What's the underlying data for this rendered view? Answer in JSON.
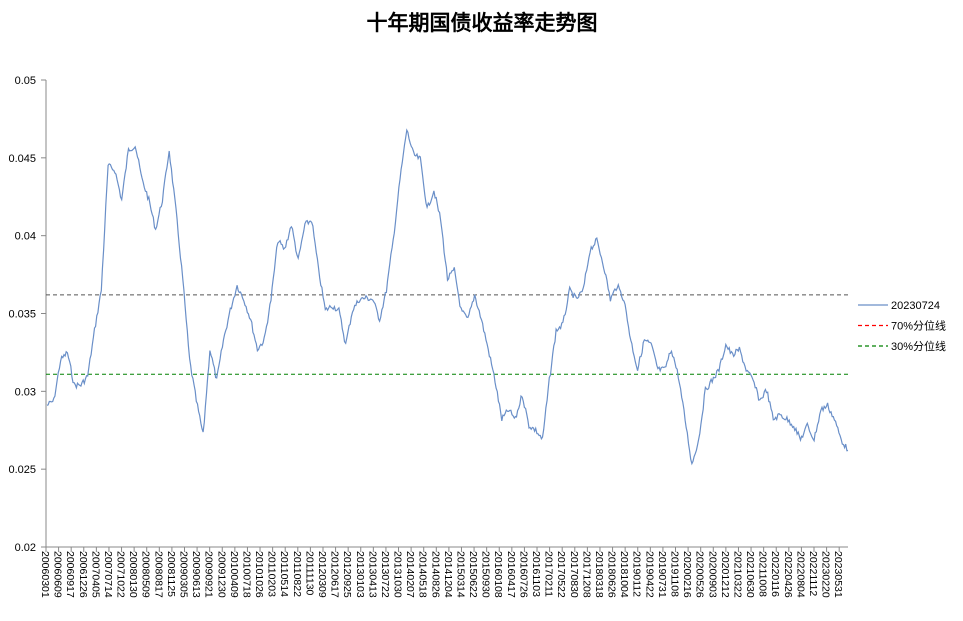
{
  "chart_data": {
    "type": "line",
    "title": "十年期国债收益率走势图",
    "xlabel": "",
    "ylabel": "",
    "ylim": [
      0.02,
      0.05
    ],
    "yticks": [
      "0.02",
      "0.025",
      "0.03",
      "0.035",
      "0.04",
      "0.045",
      "0.05"
    ],
    "ytick_values": [
      0.02,
      0.025,
      0.03,
      0.035,
      0.04,
      0.045,
      0.05
    ],
    "x_tick_labels": [
      "20060301",
      "20060609",
      "20060917",
      "20061226",
      "20070405",
      "20070714",
      "20071022",
      "20080130",
      "20080509",
      "20080817",
      "20081125",
      "20090305",
      "20090613",
      "20090921",
      "20091230",
      "20100409",
      "20100718",
      "20101026",
      "20110203",
      "20110514",
      "20110822",
      "20111130",
      "20120309",
      "20120617",
      "20120925",
      "20130103",
      "20130413",
      "20130722",
      "20131030",
      "20140207",
      "20140518",
      "20140826",
      "20141204",
      "20150314",
      "20150622",
      "20150930",
      "20160108",
      "20160417",
      "20160726",
      "20161103",
      "20170211",
      "20170522",
      "20170830",
      "20171208",
      "20180318",
      "20180626",
      "20181004",
      "20190112",
      "20190422",
      "20190731",
      "20191108",
      "20200216",
      "20200526",
      "20200903",
      "20201212",
      "20210322",
      "20210630",
      "20211008",
      "20220116",
      "20220426",
      "20220804",
      "20221112",
      "20230220",
      "20230531"
    ],
    "x_range": [
      "20060301",
      "20230724"
    ],
    "grid": false,
    "legend_position": "right",
    "series": [
      {
        "name": "20230724",
        "color": "#6a8fc8",
        "style": "solid",
        "values": [
          0.0291,
          0.0294,
          0.032,
          0.0325,
          0.0304,
          0.0304,
          0.031,
          0.0339,
          0.0365,
          0.0445,
          0.0442,
          0.0423,
          0.0455,
          0.0458,
          0.0436,
          0.0423,
          0.0404,
          0.0423,
          0.0455,
          0.0416,
          0.0372,
          0.032,
          0.0294,
          0.0272,
          0.0327,
          0.0307,
          0.0333,
          0.0352,
          0.0368,
          0.0359,
          0.0346,
          0.0327,
          0.0333,
          0.0359,
          0.0397,
          0.0391,
          0.0407,
          0.0384,
          0.0407,
          0.041,
          0.0378,
          0.0352,
          0.0355,
          0.0352,
          0.033,
          0.0352,
          0.0359,
          0.036,
          0.0359,
          0.0346,
          0.0365,
          0.0397,
          0.0436,
          0.0468,
          0.0452,
          0.0449,
          0.0417,
          0.0429,
          0.041,
          0.0372,
          0.0378,
          0.0352,
          0.0346,
          0.0362,
          0.0346,
          0.0327,
          0.0307,
          0.0282,
          0.0288,
          0.0282,
          0.0298,
          0.0278,
          0.0275,
          0.0269,
          0.0307,
          0.0339,
          0.0343,
          0.0365,
          0.0359,
          0.0365,
          0.0391,
          0.0397,
          0.0381,
          0.0359,
          0.0368,
          0.0359,
          0.0333,
          0.0314,
          0.0333,
          0.033,
          0.0314,
          0.0314,
          0.0327,
          0.031,
          0.0282,
          0.0253,
          0.0269,
          0.0301,
          0.0307,
          0.0314,
          0.033,
          0.0323,
          0.0327,
          0.0314,
          0.0307,
          0.0294,
          0.0301,
          0.0282,
          0.0285,
          0.0282,
          0.0278,
          0.0269,
          0.0278,
          0.0269,
          0.0288,
          0.0291,
          0.0282,
          0.0269,
          0.0262
        ]
      },
      {
        "name": "70%分位线",
        "legend_color": "#ff0000",
        "color": "#555555",
        "style": "dashed",
        "value": 0.0362
      },
      {
        "name": "30%分位线",
        "color": "#008000",
        "style": "dashed",
        "value": 0.0311
      }
    ]
  }
}
